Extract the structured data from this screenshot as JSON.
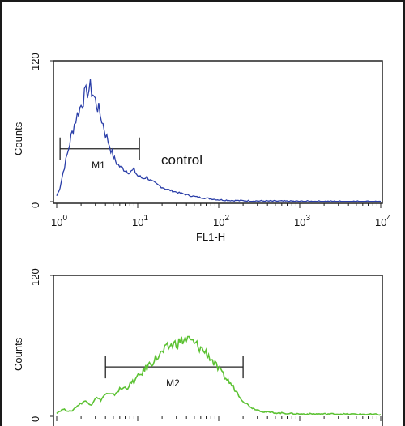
{
  "chart_data": [
    {
      "type": "histogram",
      "xscale": "log",
      "xlim": [
        1,
        10000
      ],
      "ylim": [
        0,
        120
      ],
      "ylabel": "Counts",
      "xlabel": "FL1-H",
      "yticks": [
        {
          "value": 0,
          "label": "0"
        },
        {
          "value": 120,
          "label": "120"
        }
      ],
      "xticks": [
        {
          "value": 1,
          "base": "10",
          "exp": "0"
        },
        {
          "value": 10,
          "base": "10",
          "exp": "1"
        },
        {
          "value": 100,
          "base": "10",
          "exp": "2"
        },
        {
          "value": 1000,
          "base": "10",
          "exp": "3"
        },
        {
          "value": 10000,
          "base": "10",
          "exp": "4"
        }
      ],
      "series_color": "#2a3ea8",
      "annotation": "control",
      "marker": {
        "label": "M1",
        "x_start": 1.1,
        "x_end": 10.5,
        "y": 45
      },
      "series": [
        {
          "x": [
            1.0,
            1.1,
            1.2,
            1.35,
            1.5,
            1.65,
            1.8,
            2.0,
            2.2,
            2.4,
            2.6,
            2.8,
            3.0,
            3.3,
            3.6,
            4.0,
            4.5,
            5.0,
            5.5,
            6.0,
            7.0,
            8.0,
            9.0,
            10.0,
            11.5,
            13,
            15,
            18,
            22,
            27,
            35,
            45,
            60,
            80,
            100,
            150,
            300,
            1000,
            10000
          ],
          "y": [
            5,
            12,
            25,
            40,
            55,
            66,
            74,
            82,
            90,
            94,
            97,
            92,
            86,
            78,
            70,
            58,
            48,
            38,
            33,
            30,
            27,
            25,
            27,
            22,
            20,
            21,
            17,
            14,
            11,
            9,
            7,
            5,
            3.5,
            2.5,
            1.6,
            1,
            0.6,
            0.3,
            0.2
          ]
        }
      ]
    },
    {
      "type": "histogram",
      "xscale": "log",
      "xlim": [
        1,
        10000
      ],
      "ylim": [
        0,
        120
      ],
      "ylabel": "Counts",
      "yticks": [
        {
          "value": 0,
          "label": "0"
        },
        {
          "value": 120,
          "label": "120"
        }
      ],
      "series_color": "#5cc233",
      "marker": {
        "label": "M2",
        "x_start": 4.0,
        "x_end": 200,
        "y": 42
      },
      "series": [
        {
          "x": [
            1.0,
            1.2,
            1.5,
            1.8,
            2.2,
            2.7,
            3.0,
            3.5,
            4.0,
            5.0,
            6.0,
            7.5,
            9.0,
            11,
            13,
            16,
            20,
            25,
            30,
            40,
            50,
            60,
            75,
            90,
            110,
            140,
            170,
            200,
            260,
            350,
            500,
            1000,
            3000,
            10000
          ],
          "y": [
            3,
            6,
            4,
            9,
            13,
            10,
            16,
            14,
            19,
            18,
            23,
            25,
            30,
            36,
            42,
            48,
            54,
            60,
            62,
            66,
            62,
            58,
            52,
            44,
            36,
            28,
            20,
            13,
            7,
            4,
            3,
            2,
            2,
            1.5
          ]
        }
      ]
    }
  ]
}
